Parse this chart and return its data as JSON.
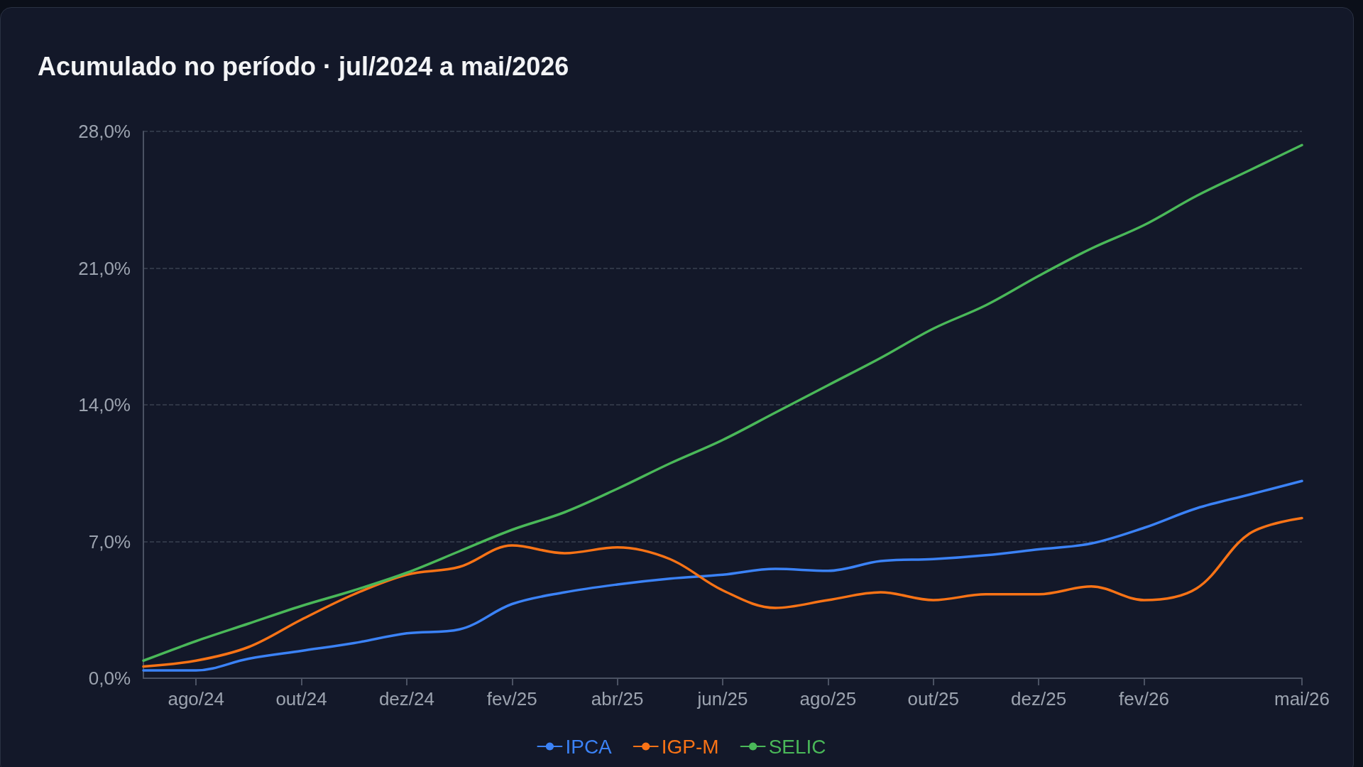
{
  "chart_data": {
    "type": "line",
    "title": "Acumulado no período · jul/2024 a mai/2026",
    "categories": [
      null,
      "ago/24",
      null,
      "out/24",
      null,
      "dez/24",
      null,
      "fev/25",
      null,
      "abr/25",
      null,
      "jun/25",
      null,
      "ago/25",
      null,
      "out/25",
      null,
      "dez/25",
      null,
      "fev/26",
      null,
      null,
      "mai/26"
    ],
    "series": [
      {
        "name": "IPCA",
        "color": "#3b82f6",
        "values": [
          0.4,
          0.4,
          1.0,
          1.4,
          1.8,
          2.3,
          2.5,
          3.8,
          4.4,
          4.8,
          5.1,
          5.3,
          5.6,
          5.5,
          6.0,
          6.1,
          6.3,
          6.6,
          6.9,
          7.7,
          8.7,
          9.4,
          10.1
        ]
      },
      {
        "name": "IGP-M",
        "color": "#f97316",
        "values": [
          0.6,
          0.9,
          1.6,
          3.0,
          4.3,
          5.3,
          5.7,
          6.8,
          6.4,
          6.7,
          6.1,
          4.5,
          3.6,
          4.0,
          4.4,
          4.0,
          4.3,
          4.3,
          4.7,
          4.0,
          4.6,
          7.4,
          8.2
        ]
      },
      {
        "name": "SELIC",
        "color": "#4ab859",
        "values": [
          0.9,
          1.9,
          2.8,
          3.7,
          4.5,
          5.4,
          6.5,
          7.6,
          8.5,
          9.7,
          11.0,
          12.2,
          13.6,
          15.0,
          16.4,
          17.9,
          19.1,
          20.6,
          22.0,
          23.2,
          24.7,
          26.0,
          27.3
        ]
      }
    ],
    "ylim": [
      0,
      28
    ],
    "yticks": [
      {
        "value": 0,
        "label": "0,0%"
      },
      {
        "value": 7,
        "label": "7,0%"
      },
      {
        "value": 14,
        "label": "14,0%"
      },
      {
        "value": 21,
        "label": "21,0%"
      },
      {
        "value": 28,
        "label": "28,0%"
      }
    ],
    "grid": "y",
    "legend": "bottom",
    "marker": "none",
    "line_style": "solid"
  }
}
